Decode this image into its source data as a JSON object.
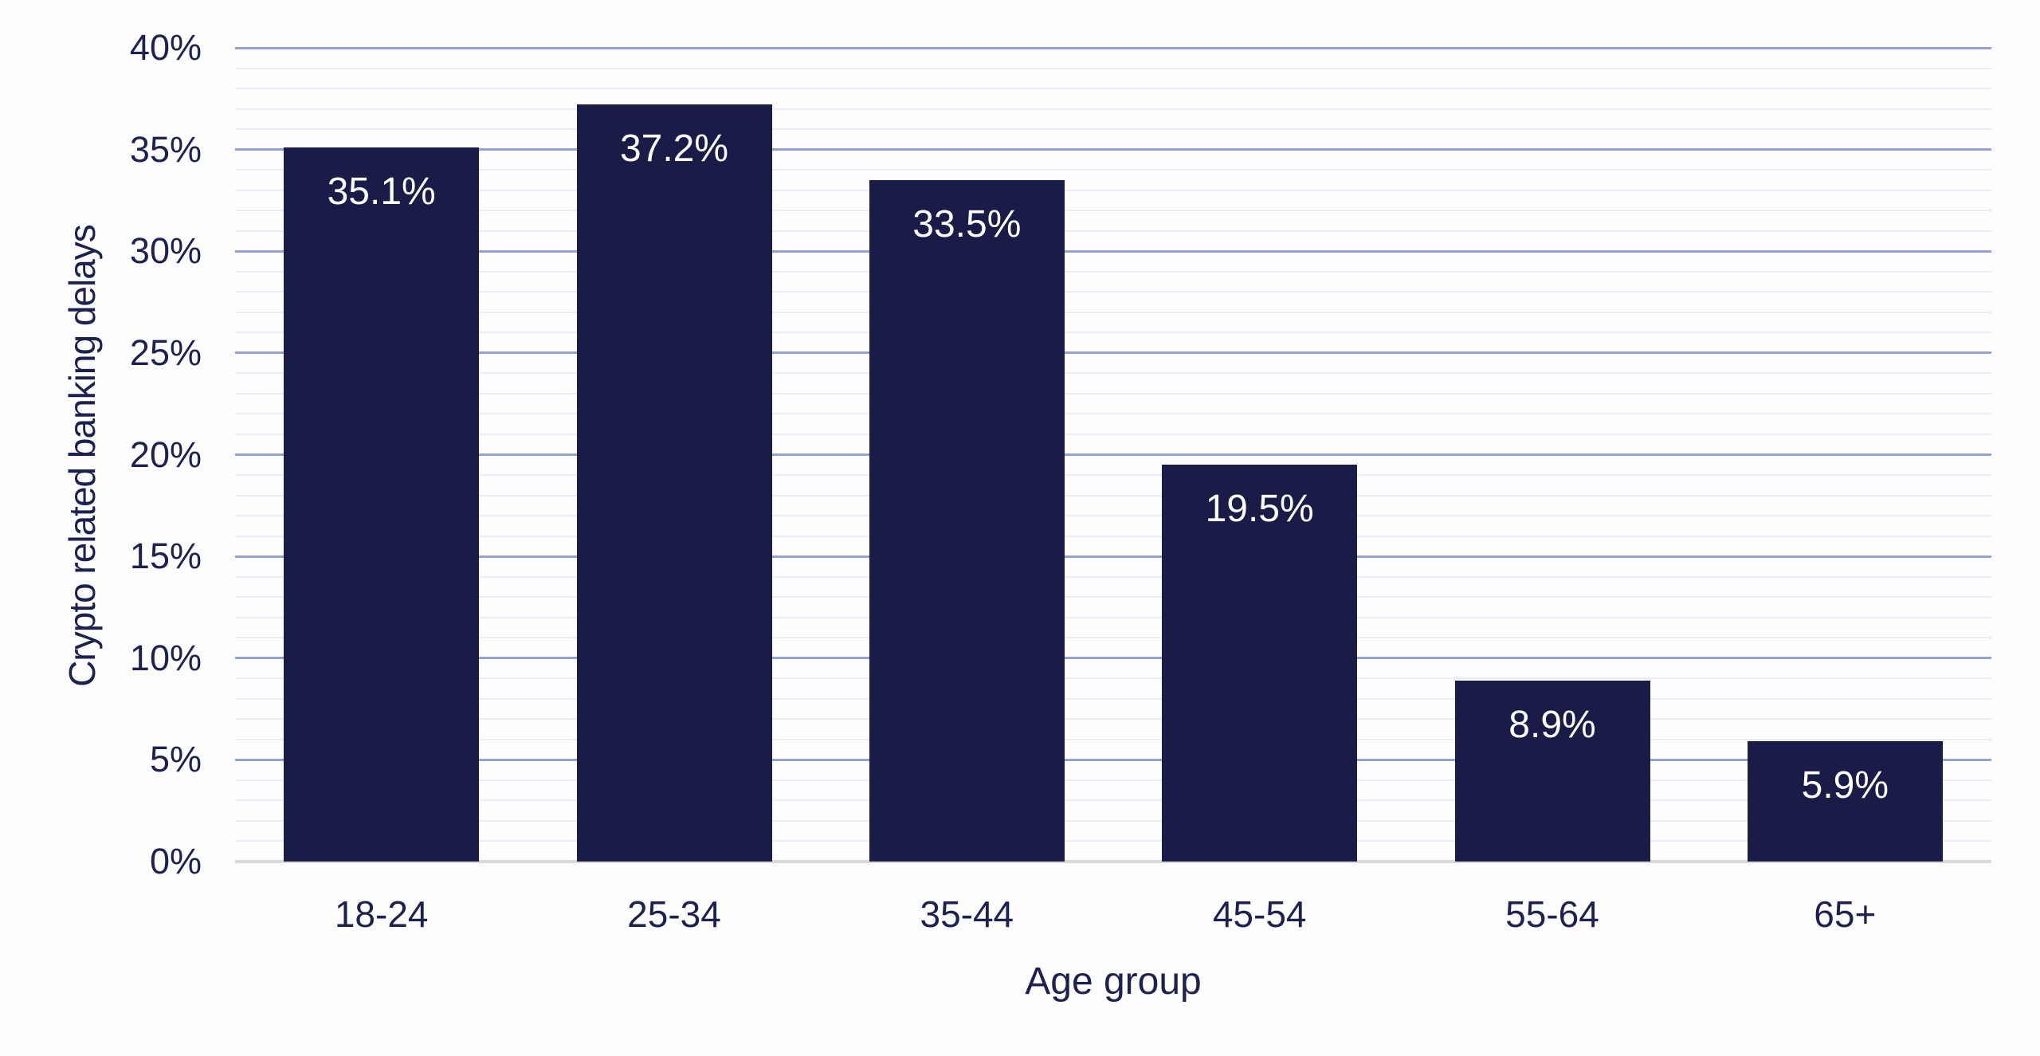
{
  "chart_data": {
    "type": "bar",
    "title": "",
    "categories": [
      "18-24",
      "25-34",
      "35-44",
      "45-54",
      "55-64",
      "65+"
    ],
    "values": [
      35.1,
      37.2,
      33.5,
      19.5,
      8.9,
      5.9
    ],
    "data_labels": [
      "35.1%",
      "37.2%",
      "33.5%",
      "19.5%",
      "8.9%",
      "5.9%"
    ],
    "xlabel": "Age group",
    "ylabel": "Crypto related banking delays",
    "ylim": [
      0,
      40
    ],
    "ytick_step": 5,
    "ytick_labels": [
      "0%",
      "5%",
      "10%",
      "15%",
      "20%",
      "25%",
      "30%",
      "35%",
      "40%"
    ],
    "minor_gridline_step": 1,
    "grid": "horizontal major every 5%, minor every 1%",
    "legend": "none",
    "colors": {
      "bar": "#181c46",
      "data_label": "#ffffff",
      "axis_text": "#1c2150",
      "major_gridline": "#95a1d2",
      "minor_gridline": "#ebedf6",
      "baseline": "#d9d9d9",
      "background": "#fdfdfe"
    }
  }
}
